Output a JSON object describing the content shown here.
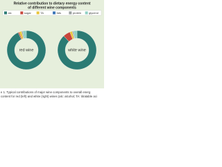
{
  "figure": {
    "title": [
      "Relative contribution to dietary energy content",
      "of different wine components"
    ]
  },
  "chart_data": [
    {
      "type": "pie",
      "label": "red wine",
      "categories": [
        "alc",
        "sugar",
        "TA",
        "fats",
        "protein",
        "glycerol"
      ],
      "values": [
        93,
        1,
        2,
        0,
        1,
        3
      ],
      "colors": [
        "#2b7b74",
        "#c8463c",
        "#e8c43a",
        "#3a74b8",
        "#9aa0a0",
        "#8fd0c4"
      ]
    },
    {
      "type": "pie",
      "label": "white wine",
      "categories": [
        "alc",
        "sugar",
        "TA",
        "fats",
        "protein",
        "glycerol"
      ],
      "values": [
        88,
        6,
        2,
        0,
        1,
        3
      ],
      "colors": [
        "#2b7b74",
        "#c8463c",
        "#e8c43a",
        "#3a74b8",
        "#9aa0a0",
        "#8fd0c4"
      ]
    }
  ],
  "caption": [
    "e 1. Typical contributions of major wine components to overall energ",
    "content for red (left) and white (right) wines (alc: alcohol; TA: titratable aci"
  ]
}
